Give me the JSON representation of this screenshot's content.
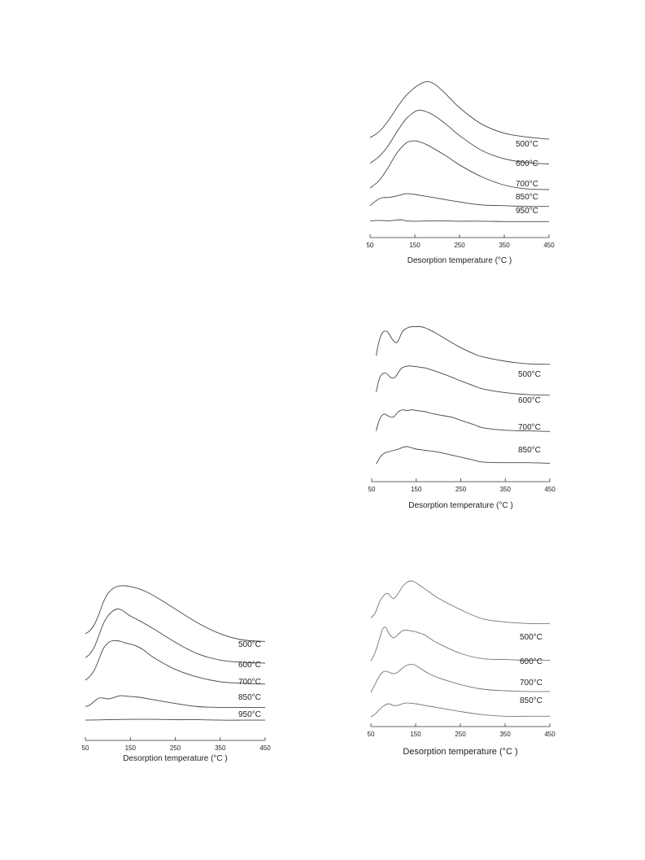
{
  "chart_data": [
    {
      "type": "line",
      "xlabel": "Desorption temperature (°C )",
      "xlim": [
        50,
        450
      ],
      "x_ticks": [
        "50",
        "150",
        "250",
        "350",
        "450"
      ],
      "series": [
        {
          "name": "500°C",
          "x": [
            50,
            70,
            90,
            110,
            130,
            150,
            160,
            170,
            180,
            190,
            200,
            220,
            250,
            300,
            350,
            400,
            450
          ],
          "y": [
            0.28,
            0.36,
            0.5,
            0.68,
            0.84,
            0.95,
            0.99,
            1.02,
            1.03,
            1.01,
            0.97,
            0.86,
            0.68,
            0.46,
            0.34,
            0.29,
            0.26
          ]
        },
        {
          "name": "600°C",
          "x": [
            50,
            70,
            90,
            110,
            130,
            150,
            160,
            170,
            190,
            220,
            250,
            300,
            350,
            400,
            450
          ],
          "y": [
            0.21,
            0.3,
            0.44,
            0.63,
            0.8,
            0.9,
            0.92,
            0.91,
            0.86,
            0.73,
            0.58,
            0.38,
            0.27,
            0.22,
            0.2
          ]
        },
        {
          "name": "700°C",
          "x": [
            50,
            70,
            90,
            110,
            130,
            145,
            160,
            180,
            220,
            250,
            300,
            350,
            400,
            450
          ],
          "y": [
            0.15,
            0.25,
            0.42,
            0.62,
            0.75,
            0.78,
            0.77,
            0.72,
            0.58,
            0.46,
            0.3,
            0.19,
            0.14,
            0.13
          ]
        },
        {
          "name": "850°C",
          "x": [
            50,
            60,
            70,
            80,
            90,
            110,
            130,
            150,
            170,
            200,
            250,
            300,
            350,
            400,
            450
          ],
          "y": [
            0.1,
            0.15,
            0.19,
            0.21,
            0.21,
            0.23,
            0.26,
            0.25,
            0.23,
            0.2,
            0.15,
            0.11,
            0.1,
            0.09,
            0.09
          ]
        },
        {
          "name": "950°C",
          "x": [
            50,
            70,
            90,
            100,
            110,
            120,
            130,
            150,
            200,
            250,
            300,
            350,
            400,
            450
          ],
          "y": [
            0.05,
            0.055,
            0.05,
            0.055,
            0.06,
            0.065,
            0.05,
            0.045,
            0.05,
            0.045,
            0.045,
            0.04,
            0.04,
            0.04
          ]
        }
      ]
    },
    {
      "type": "line",
      "xlabel": "Desorption temperature (°C )",
      "xlim": [
        50,
        450
      ],
      "x_ticks": [
        "50",
        "150",
        "250",
        "350",
        "450"
      ],
      "series": [
        {
          "name": "500°C",
          "x": [
            60,
            65,
            70,
            75,
            80,
            85,
            90,
            95,
            100,
            105,
            110,
            115,
            120,
            130,
            140,
            150,
            160,
            170,
            180,
            200,
            230,
            250,
            280,
            300,
            350,
            400,
            450
          ],
          "y": [
            0.55,
            0.74,
            0.86,
            0.93,
            0.95,
            0.94,
            0.89,
            0.83,
            0.78,
            0.76,
            0.8,
            0.88,
            0.95,
            1.0,
            1.02,
            1.02,
            1.02,
            1.0,
            0.97,
            0.89,
            0.76,
            0.68,
            0.58,
            0.53,
            0.46,
            0.42,
            0.41
          ]
        },
        {
          "name": "600°C",
          "x": [
            60,
            65,
            70,
            75,
            80,
            85,
            90,
            95,
            100,
            105,
            110,
            115,
            120,
            130,
            140,
            150,
            160,
            170,
            180,
            200,
            230,
            250,
            280,
            300,
            350,
            400,
            450
          ],
          "y": [
            0.37,
            0.53,
            0.63,
            0.67,
            0.68,
            0.66,
            0.62,
            0.6,
            0.6,
            0.63,
            0.69,
            0.74,
            0.77,
            0.79,
            0.79,
            0.78,
            0.77,
            0.76,
            0.74,
            0.69,
            0.61,
            0.55,
            0.47,
            0.42,
            0.36,
            0.33,
            0.32
          ]
        },
        {
          "name": "700°C",
          "x": [
            60,
            65,
            70,
            75,
            80,
            85,
            90,
            95,
            100,
            105,
            110,
            115,
            120,
            130,
            140,
            150,
            160,
            170,
            180,
            200,
            230,
            250,
            280,
            300,
            350,
            400,
            450
          ],
          "y": [
            0.19,
            0.32,
            0.41,
            0.45,
            0.46,
            0.44,
            0.42,
            0.41,
            0.42,
            0.46,
            0.5,
            0.52,
            0.53,
            0.52,
            0.53,
            0.52,
            0.51,
            0.5,
            0.48,
            0.45,
            0.41,
            0.36,
            0.29,
            0.24,
            0.2,
            0.19,
            0.18
          ]
        },
        {
          "name": "850°C",
          "x": [
            60,
            65,
            70,
            80,
            90,
            100,
            110,
            120,
            130,
            140,
            150,
            170,
            200,
            250,
            280,
            300,
            350,
            400,
            450
          ],
          "y": [
            0.05,
            0.11,
            0.17,
            0.23,
            0.25,
            0.27,
            0.29,
            0.32,
            0.33,
            0.31,
            0.29,
            0.27,
            0.24,
            0.16,
            0.11,
            0.08,
            0.07,
            0.07,
            0.06
          ]
        }
      ]
    },
    {
      "type": "line",
      "xlabel": "Desorption temperature (°C )",
      "xlim": [
        50,
        450
      ],
      "x_ticks": [
        "50",
        "150",
        "250",
        "350",
        "450"
      ],
      "series": [
        {
          "name": "500°C",
          "x": [
            50,
            60,
            70,
            80,
            90,
            100,
            110,
            120,
            130,
            140,
            150,
            170,
            190,
            220,
            250,
            300,
            350,
            400,
            450
          ],
          "y": [
            0.38,
            0.42,
            0.5,
            0.63,
            0.79,
            0.9,
            0.96,
            0.99,
            1.0,
            1.0,
            0.99,
            0.96,
            0.91,
            0.81,
            0.7,
            0.52,
            0.38,
            0.3,
            0.28
          ]
        },
        {
          "name": "600°C",
          "x": [
            50,
            60,
            70,
            80,
            90,
            100,
            110,
            120,
            130,
            140,
            150,
            170,
            200,
            250,
            300,
            350,
            400,
            450
          ],
          "y": [
            0.28,
            0.33,
            0.42,
            0.57,
            0.72,
            0.82,
            0.88,
            0.91,
            0.9,
            0.86,
            0.82,
            0.76,
            0.66,
            0.48,
            0.33,
            0.25,
            0.22,
            0.21
          ]
        },
        {
          "name": "700°C",
          "x": [
            50,
            60,
            70,
            80,
            90,
            100,
            110,
            120,
            130,
            140,
            160,
            180,
            200,
            250,
            300,
            350,
            400,
            450
          ],
          "y": [
            0.2,
            0.25,
            0.33,
            0.47,
            0.61,
            0.68,
            0.71,
            0.71,
            0.7,
            0.68,
            0.65,
            0.59,
            0.5,
            0.34,
            0.24,
            0.18,
            0.16,
            0.15
          ]
        },
        {
          "name": "850°C",
          "x": [
            50,
            60,
            70,
            80,
            90,
            100,
            110,
            120,
            130,
            150,
            170,
            200,
            250,
            300,
            350,
            400,
            450
          ],
          "y": [
            0.09,
            0.11,
            0.16,
            0.2,
            0.2,
            0.19,
            0.2,
            0.22,
            0.23,
            0.22,
            0.21,
            0.18,
            0.13,
            0.09,
            0.08,
            0.08,
            0.08
          ]
        },
        {
          "name": "950°C",
          "x": [
            50,
            100,
            150,
            200,
            250,
            300,
            350,
            400,
            450
          ],
          "y": [
            0.02,
            0.025,
            0.03,
            0.03,
            0.025,
            0.025,
            0.02,
            0.02,
            0.02
          ]
        }
      ]
    },
    {
      "type": "line",
      "xlabel": "Desorption temperature (°C )",
      "xlim": [
        50,
        450
      ],
      "x_ticks": [
        "50",
        "150",
        "250",
        "350",
        "450"
      ],
      "series": [
        {
          "name": "500°C",
          "x": [
            50,
            60,
            70,
            80,
            85,
            90,
            100,
            110,
            120,
            130,
            140,
            150,
            160,
            180,
            200,
            250,
            300,
            350,
            400,
            450
          ],
          "y": [
            0.53,
            0.6,
            0.75,
            0.83,
            0.85,
            0.84,
            0.78,
            0.84,
            0.93,
            0.99,
            1.01,
            0.99,
            0.95,
            0.87,
            0.79,
            0.64,
            0.52,
            0.48,
            0.46,
            0.46
          ]
        },
        {
          "name": "600°C",
          "x": [
            50,
            60,
            70,
            75,
            80,
            85,
            90,
            100,
            110,
            120,
            130,
            140,
            150,
            160,
            170,
            180,
            200,
            250,
            300,
            350,
            400,
            450
          ],
          "y": [
            0.3,
            0.42,
            0.6,
            0.7,
            0.74,
            0.72,
            0.66,
            0.6,
            0.64,
            0.69,
            0.7,
            0.69,
            0.68,
            0.66,
            0.64,
            0.6,
            0.53,
            0.4,
            0.33,
            0.32,
            0.31,
            0.31
          ]
        },
        {
          "name": "700°C",
          "x": [
            50,
            60,
            70,
            80,
            90,
            100,
            110,
            120,
            130,
            140,
            150,
            160,
            180,
            200,
            250,
            300,
            350,
            400,
            450
          ],
          "y": [
            0.17,
            0.28,
            0.39,
            0.44,
            0.43,
            0.41,
            0.43,
            0.48,
            0.52,
            0.53,
            0.52,
            0.48,
            0.41,
            0.36,
            0.27,
            0.21,
            0.19,
            0.18,
            0.18
          ]
        },
        {
          "name": "850°C",
          "x": [
            50,
            60,
            70,
            80,
            90,
            100,
            110,
            120,
            130,
            150,
            170,
            200,
            250,
            300,
            350,
            400,
            450
          ],
          "y": [
            0.04,
            0.08,
            0.14,
            0.19,
            0.21,
            0.19,
            0.19,
            0.21,
            0.22,
            0.21,
            0.19,
            0.16,
            0.11,
            0.07,
            0.05,
            0.05,
            0.05
          ]
        }
      ]
    }
  ]
}
